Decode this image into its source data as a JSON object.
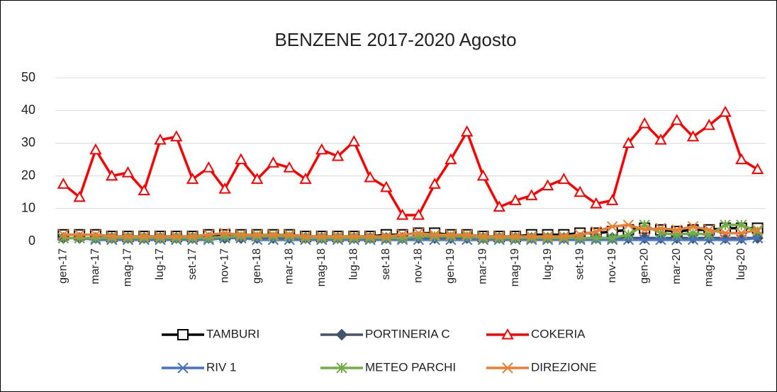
{
  "chart_data": {
    "type": "line",
    "title": "BENZENE 2017-2020 Agosto",
    "categories": [
      "gen-17",
      null,
      "mar-17",
      null,
      "mag-17",
      null,
      "lug-17",
      null,
      "set-17",
      null,
      "nov-17",
      null,
      "gen-18",
      null,
      "mar-18",
      null,
      "mag-18",
      null,
      "lug-18",
      null,
      "set-18",
      null,
      "nov-18",
      null,
      "gen-19",
      null,
      "mar-19",
      null,
      "mag-19",
      null,
      "lug-19",
      null,
      "set-19",
      null,
      "nov-19",
      null,
      "gen-20",
      null,
      "mar-20",
      null,
      "mag-20",
      null,
      "lug-20",
      null
    ],
    "ylim": [
      0,
      50
    ],
    "yticks": [
      0,
      10,
      20,
      30,
      40,
      50
    ],
    "grid": true,
    "series": [
      {
        "name": "TAMBURI",
        "color": "#000000",
        "marker": "square",
        "values": [
          2,
          2,
          2,
          1.5,
          1.5,
          1.5,
          1.5,
          1.5,
          1.5,
          2,
          2,
          2,
          2,
          2,
          2,
          1.5,
          1.5,
          1.5,
          1.5,
          1.5,
          2,
          2,
          2.5,
          2.5,
          2,
          2,
          1.5,
          1.5,
          1.5,
          2,
          2,
          2,
          2.5,
          2.5,
          3,
          3.5,
          4,
          3.5,
          3,
          3.5,
          3.5,
          4,
          4,
          4
        ]
      },
      {
        "name": "PORTINERIA C",
        "color": "#44546a",
        "marker": "diamond",
        "values": [
          1,
          1,
          1,
          1,
          1,
          1,
          1,
          1,
          1,
          1,
          1,
          1,
          1,
          1,
          1,
          1,
          1,
          1,
          1,
          1,
          1,
          1,
          1,
          1,
          1,
          1,
          1,
          1,
          1,
          1,
          1,
          1,
          1,
          1,
          1,
          1,
          1,
          1,
          1,
          1,
          1,
          1,
          1,
          1
        ]
      },
      {
        "name": "COKERIA",
        "color": "#ff0000",
        "marker": "triangle",
        "values": [
          17.5,
          13.5,
          28,
          20,
          21,
          15.5,
          31,
          32,
          19,
          22.5,
          16,
          25,
          19,
          24,
          22.5,
          19,
          28,
          26,
          30.5,
          19.5,
          16.5,
          8,
          8,
          17.5,
          25,
          33.5,
          20,
          10.5,
          12.5,
          14,
          17,
          19,
          15,
          11.5,
          12.5,
          30,
          36,
          31,
          37,
          32,
          35.5,
          39.5,
          25,
          22
        ]
      },
      {
        "name": "RIV 1",
        "color": "#4472c4",
        "marker": "x",
        "values": [
          1,
          1,
          0.5,
          0.5,
          0.5,
          0.5,
          0.5,
          0.5,
          0.5,
          0.5,
          1,
          1,
          0.5,
          0.5,
          0.5,
          0.5,
          0.5,
          0.5,
          0.5,
          0.5,
          0.5,
          0.5,
          0.5,
          0.5,
          0.5,
          0.5,
          0.5,
          0.5,
          0.5,
          0.5,
          0.5,
          0.5,
          0.5,
          0.5,
          0.5,
          0.5,
          0.5,
          0.5,
          0.5,
          0.5,
          0.5,
          0.5,
          0.5,
          1
        ]
      },
      {
        "name": "METEO PARCHI",
        "color": "#70ad47",
        "marker": "star",
        "values": [
          1,
          1,
          1,
          1,
          1,
          1,
          1,
          1,
          1,
          1,
          1.5,
          1.5,
          1.5,
          1.5,
          1.5,
          1,
          1,
          1,
          1,
          1,
          1,
          1,
          1.5,
          1.5,
          1.5,
          1.5,
          1,
          1,
          1,
          1,
          1,
          1,
          1,
          1,
          1,
          2,
          5,
          2.5,
          2,
          2.5,
          2,
          5,
          5,
          3
        ]
      },
      {
        "name": "DIREZIONE",
        "color": "#ed7d31",
        "marker": "x",
        "values": [
          2,
          2,
          2,
          1.5,
          1.5,
          1.5,
          1.5,
          1.5,
          1.5,
          2,
          2.5,
          2,
          2,
          2,
          2,
          1.5,
          1.5,
          1.5,
          1.5,
          1.5,
          1.5,
          2,
          2.5,
          2,
          2,
          2,
          1.5,
          1.5,
          1.5,
          1.5,
          1.5,
          1.5,
          2,
          3,
          4.5,
          5,
          3.5,
          4,
          3.5,
          4.5,
          3.5,
          2.5,
          2.5,
          3.5
        ]
      }
    ]
  }
}
